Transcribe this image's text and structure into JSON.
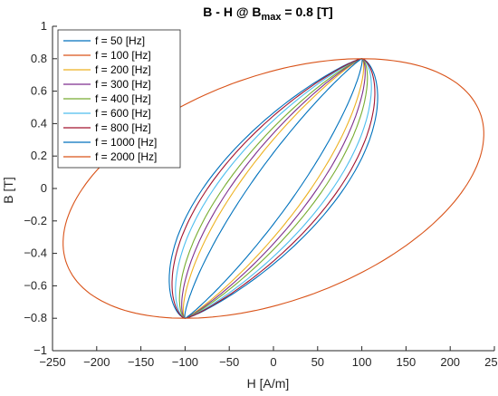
{
  "chart_data": {
    "type": "line",
    "title": {
      "prefix": "B - H @ B",
      "subscript": "max",
      "suffix": " = 0.8 [T]"
    },
    "xlabel": "H [A/m]",
    "ylabel": "B [T]",
    "xlim": [
      -250,
      250
    ],
    "ylim": [
      -1,
      1
    ],
    "xticks": [
      "−250",
      "−200",
      "−150",
      "−100",
      "−50",
      "0",
      "50",
      "100",
      "150",
      "200",
      "250"
    ],
    "yticks": [
      "1",
      "0.8",
      "0.6",
      "0.4",
      "0.2",
      "0",
      "−0.2",
      "−0.4",
      "−0.6",
      "−0.8",
      "−1"
    ],
    "grid": false,
    "legend_position": "top-left",
    "B_max": 0.8,
    "series": [
      {
        "name": "f = 50 [Hz]",
        "color": "#0072BD",
        "H_max": 100,
        "H_coercive": 66,
        "H_loop_max": 170
      },
      {
        "name": "f = 100 [Hz]",
        "color": "#D95319",
        "H_max": 100,
        "H_coercive": 0,
        "H_loop_max": 0
      },
      {
        "name": "f = 200 [Hz]",
        "color": "#EDB120",
        "H_max": 100,
        "H_coercive": 18,
        "H_loop_max": 140
      },
      {
        "name": "f = 300 [Hz]",
        "color": "#7E2F8E",
        "H_max": 100,
        "H_coercive": 25,
        "H_loop_max": 146
      },
      {
        "name": "f = 400 [Hz]",
        "color": "#77AC30",
        "H_max": 100,
        "H_coercive": 34,
        "H_loop_max": 152
      },
      {
        "name": "f = 600 [Hz]",
        "color": "#4DBEEE",
        "H_max": 100,
        "H_coercive": 48,
        "H_loop_max": 160
      },
      {
        "name": "f = 800 [Hz]",
        "color": "#A2142F",
        "H_max": 100,
        "H_coercive": 57,
        "H_loop_max": 166
      },
      {
        "name": "f = 1000 [Hz]",
        "color": "#0072BD",
        "H_max": 100,
        "H_coercive": 8,
        "H_loop_max": 128
      },
      {
        "name": "f = 2000 [Hz]",
        "color": "#D95319",
        "H_max": 100,
        "H_coercive": 208,
        "H_loop_max": 246
      }
    ]
  }
}
